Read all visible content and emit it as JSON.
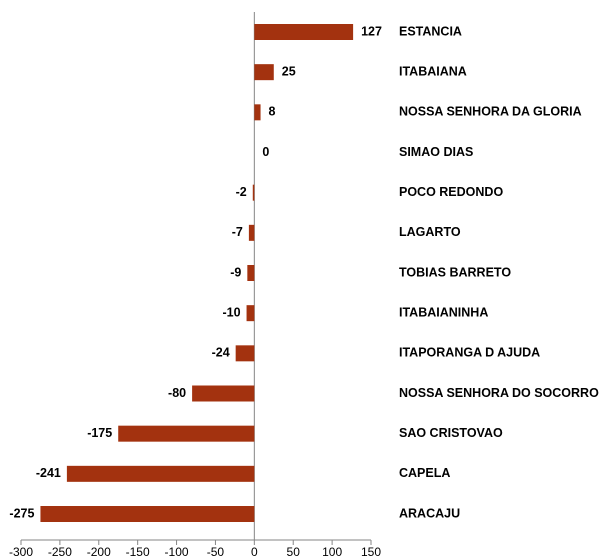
{
  "chart_data": {
    "type": "barh",
    "categories": [
      "ESTANCIA",
      "ITABAIANA",
      "NOSSA SENHORA DA GLORIA",
      "SIMAO DIAS",
      "POCO REDONDO",
      "LAGARTO",
      "TOBIAS BARRETO",
      "ITABAIANINHA",
      "ITAPORANGA D AJUDA",
      "NOSSA SENHORA DO SOCORRO",
      "SAO CRISTOVAO",
      "CAPELA",
      "ARACAJU"
    ],
    "values": [
      127,
      25,
      8,
      0,
      -2,
      -7,
      -9,
      -10,
      -24,
      -80,
      -175,
      -241,
      -275
    ],
    "color": "#a3320f",
    "xlim": [
      -300,
      150
    ],
    "xticks": [
      -300,
      -250,
      -200,
      -150,
      -100,
      -50,
      0,
      50,
      100,
      150
    ],
    "grid": false
  }
}
